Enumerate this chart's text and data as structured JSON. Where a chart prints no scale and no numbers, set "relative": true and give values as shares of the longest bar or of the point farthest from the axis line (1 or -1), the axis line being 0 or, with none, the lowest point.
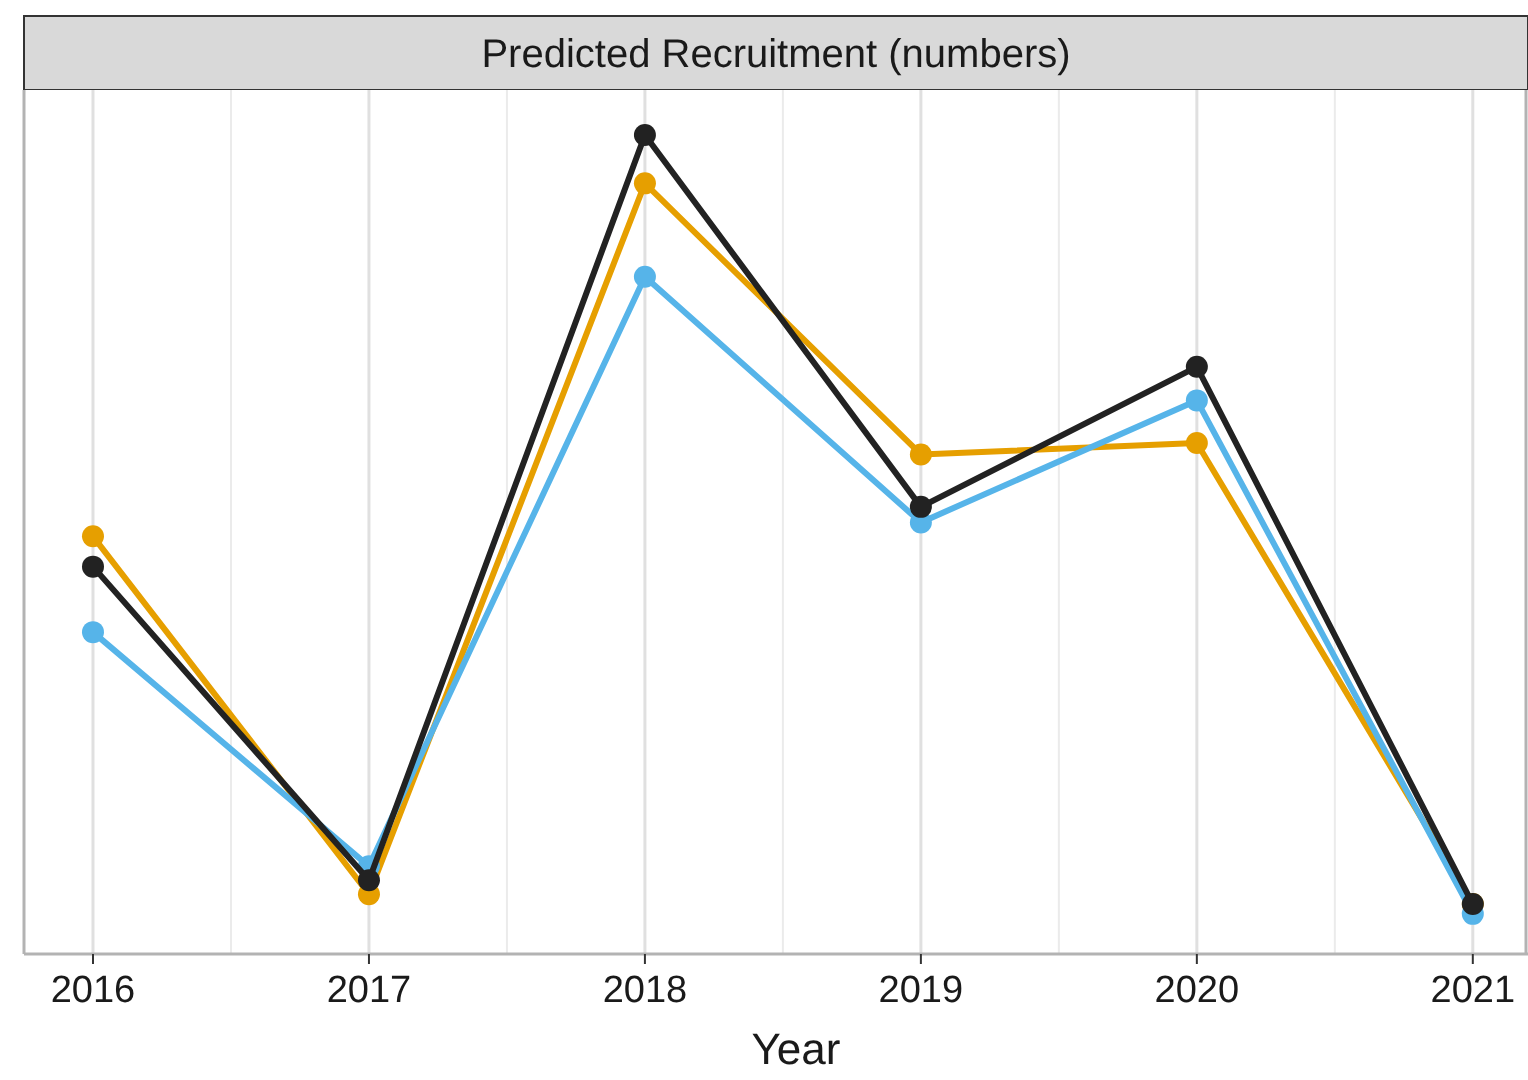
{
  "chart_data": {
    "type": "line",
    "title": "Predicted Recruitment (numbers)",
    "xlabel": "Year",
    "relative": true,
    "x": [
      2016,
      2017,
      2018,
      2019,
      2020,
      2021
    ],
    "xlim": [
      2015.75,
      2021.2
    ],
    "xticks": [
      2016,
      2017,
      2018,
      2019,
      2020,
      2021
    ],
    "grid": "x",
    "marker": "circle",
    "line_style": "solid",
    "series": [
      {
        "color": "#e69f00",
        "values": [
          0.51,
          0.073,
          0.941,
          0.61,
          0.624,
          0.061
        ]
      },
      {
        "color": "#56b4e9",
        "values": [
          0.393,
          0.107,
          0.827,
          0.527,
          0.676,
          0.049
        ]
      },
      {
        "color": "#222222",
        "values": [
          0.473,
          0.09,
          1,
          0.546,
          0.717,
          0.061
        ]
      }
    ]
  }
}
